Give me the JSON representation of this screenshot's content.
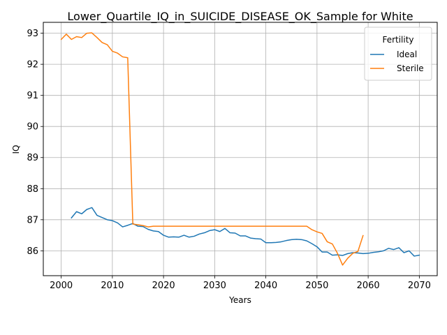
{
  "chart_data": {
    "type": "line",
    "title": "Lower_Quartile_IQ_in_SUICIDE_DISEASE_OK_Sample for White",
    "xlabel": "Years",
    "ylabel": "IQ",
    "xlim": [
      1996.5,
      2073.5
    ],
    "ylim": [
      85.2,
      93.35
    ],
    "xticks": [
      2000,
      2010,
      2020,
      2030,
      2040,
      2050,
      2060,
      2070
    ],
    "yticks": [
      86,
      87,
      88,
      89,
      90,
      91,
      92,
      93
    ],
    "grid": true,
    "legend": {
      "title": "Fertility",
      "position": "top-right"
    },
    "series": [
      {
        "name": "Ideal",
        "color": "#1f77b4",
        "x": [
          2002,
          2003,
          2004,
          2005,
          2006,
          2007,
          2008,
          2009,
          2010,
          2011,
          2012,
          2013,
          2014,
          2015,
          2016,
          2017,
          2018,
          2019,
          2020,
          2021,
          2022,
          2023,
          2024,
          2025,
          2026,
          2027,
          2028,
          2029,
          2030,
          2031,
          2032,
          2033,
          2034,
          2035,
          2036,
          2037,
          2038,
          2039,
          2040,
          2041,
          2042,
          2043,
          2044,
          2045,
          2046,
          2047,
          2048,
          2049,
          2050,
          2051,
          2052,
          2053,
          2054,
          2055,
          2056,
          2057,
          2058,
          2059,
          2060,
          2061,
          2062,
          2063,
          2064,
          2065,
          2066,
          2067,
          2068,
          2069,
          2070
        ],
        "y": [
          87.06,
          87.26,
          87.19,
          87.33,
          87.39,
          87.14,
          87.07,
          87.0,
          86.97,
          86.9,
          86.77,
          86.82,
          86.88,
          86.79,
          86.78,
          86.69,
          86.64,
          86.62,
          86.5,
          86.44,
          86.45,
          86.44,
          86.5,
          86.44,
          86.47,
          86.54,
          86.58,
          86.65,
          86.68,
          86.62,
          86.72,
          86.58,
          86.57,
          86.48,
          86.48,
          86.41,
          86.39,
          86.38,
          86.26,
          86.26,
          86.27,
          86.29,
          86.33,
          86.36,
          86.37,
          86.36,
          86.32,
          86.23,
          86.13,
          85.96,
          85.96,
          85.86,
          85.87,
          85.85,
          85.91,
          85.94,
          85.93,
          85.91,
          85.92,
          85.95,
          85.97,
          86.0,
          86.08,
          86.04,
          86.1,
          85.94,
          86.0,
          85.83,
          85.86
        ]
      },
      {
        "name": "Sterile",
        "color": "#ff7f0e",
        "x": [
          2000,
          2001,
          2002,
          2003,
          2004,
          2005,
          2006,
          2007,
          2008,
          2009,
          2010,
          2011,
          2012,
          2013,
          2014,
          2015,
          2016,
          2017,
          2018,
          2019,
          2020,
          2021,
          2022,
          2023,
          2024,
          2025,
          2026,
          2027,
          2028,
          2029,
          2030,
          2031,
          2032,
          2033,
          2034,
          2035,
          2036,
          2037,
          2038,
          2039,
          2040,
          2041,
          2042,
          2043,
          2044,
          2045,
          2046,
          2047,
          2048,
          2049,
          2050,
          2051,
          2052,
          2053,
          2054,
          2055,
          2056,
          2057,
          2058,
          2059
        ],
        "y": [
          92.8,
          92.97,
          92.8,
          92.89,
          92.86,
          93.0,
          93.01,
          92.86,
          92.7,
          92.63,
          92.42,
          92.36,
          92.24,
          92.21,
          86.86,
          86.84,
          86.81,
          86.77,
          86.79,
          86.79,
          86.79,
          86.79,
          86.79,
          86.79,
          86.79,
          86.79,
          86.79,
          86.79,
          86.79,
          86.79,
          86.79,
          86.79,
          86.79,
          86.79,
          86.79,
          86.79,
          86.79,
          86.79,
          86.79,
          86.79,
          86.79,
          86.79,
          86.79,
          86.79,
          86.79,
          86.79,
          86.79,
          86.79,
          86.79,
          86.68,
          86.61,
          86.56,
          86.29,
          86.22,
          85.92,
          85.54,
          85.76,
          85.92,
          85.98,
          86.49
        ]
      }
    ]
  },
  "colors": {
    "grid": "#b0b0b0",
    "axis": "#000000",
    "legend_border": "#cccccc"
  }
}
